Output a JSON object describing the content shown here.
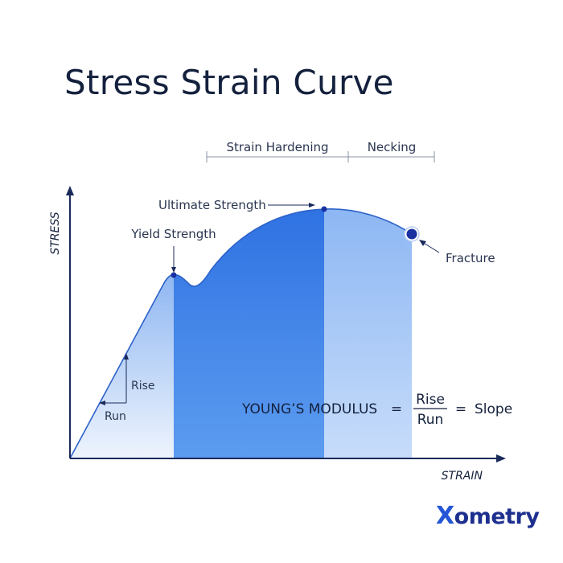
{
  "title": "Stress Strain Curve",
  "axes": {
    "y_label": "STRESS",
    "x_label": "STRAIN"
  },
  "regions": {
    "strain_hardening": "Strain Hardening",
    "necking": "Necking"
  },
  "points": {
    "yield_strength": "Yield Strength",
    "ultimate_strength": "Ultimate Strength",
    "fracture": "Fracture"
  },
  "slope_triangle": {
    "rise": "Rise",
    "run": "Run"
  },
  "formula": {
    "left": "YOUNG’S MODULUS",
    "equals_1": "=",
    "numerator": "Rise",
    "denominator": "Run",
    "equals_2": "=",
    "result": "Slope"
  },
  "logo": {
    "x": "X",
    "rest": "ometry"
  },
  "colors": {
    "title": "#14213d",
    "axis": "#1a2a5a",
    "plastic_region": "#3a7fe6",
    "dark_point": "#1a2fa0",
    "elastic_light": "#e4eefc",
    "necking_light": "#9fc3f6"
  }
}
